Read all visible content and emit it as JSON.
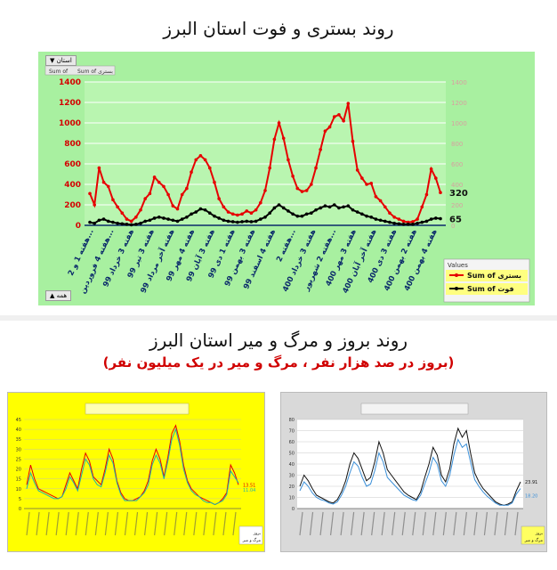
{
  "title_top": "روند بستری و فوت استان البرز",
  "title_bottom": "روند بروز و مرگ و میر استان البرز",
  "subtitle_bottom": "(بروز در صد هزار نفر ، مرگ و میر در یک میلیون نفر)",
  "filter_label": "استان",
  "bottom_filter_label": "همه",
  "colors": {
    "hosp": "#e60000",
    "death": "#000000",
    "panel_bg": "#a8f0a0",
    "yellow": "#ffff00",
    "gray": "#cccccc",
    "blue": "#3a8fd8",
    "teal": "#20b2aa"
  },
  "chart_data": [
    {
      "type": "line",
      "ylim": [
        0,
        1400
      ],
      "yticks": [
        0,
        200,
        400,
        600,
        800,
        1000,
        1200,
        1400
      ],
      "y2ticks": [
        0,
        200,
        400,
        600,
        800,
        1000,
        1200,
        1400
      ],
      "header_labels": [
        "Sum of",
        "Sum of بستری"
      ],
      "legend_title": "Values",
      "x_labels": [
        "هفته 1 و 2...",
        "هفته 4 فروردین...",
        "هفته 3 خرداد 99",
        "هفته 3 تیر 99",
        "هفته آخر مرداد 99",
        "هفته 4 مهر 99",
        "هفته 3 آبان 99",
        "هفته 1 دی 99",
        "هفته 3 بهمن 99",
        "هفته 4 اسفند 99",
        "هفته 2...",
        "هفته 3 خرداد 400",
        "هفته 2 شهریور...",
        "هفته 3 مهر 400",
        "هفته آخر آبان 400",
        "هفته 3 دی 400",
        "هفته 2 بهمن 400",
        "هفته 4 بهمن 400"
      ],
      "series": [
        {
          "name": "Sum of بستری",
          "end_label": "320",
          "values": [
            310,
            200,
            560,
            420,
            380,
            250,
            180,
            120,
            60,
            40,
            80,
            150,
            260,
            310,
            470,
            420,
            380,
            300,
            190,
            160,
            300,
            360,
            520,
            640,
            680,
            640,
            560,
            420,
            260,
            180,
            130,
            110,
            100,
            110,
            140,
            120,
            150,
            220,
            340,
            560,
            840,
            1000,
            850,
            640,
            480,
            360,
            330,
            340,
            400,
            560,
            740,
            920,
            960,
            1060,
            1080,
            1020,
            1190,
            820,
            540,
            460,
            400,
            410,
            280,
            240,
            180,
            120,
            80,
            60,
            40,
            30,
            35,
            60,
            180,
            300,
            550,
            460,
            320
          ]
        },
        {
          "name": "Sum of فوت",
          "end_label": "65",
          "values": [
            30,
            20,
            50,
            60,
            40,
            30,
            20,
            15,
            10,
            5,
            10,
            20,
            40,
            50,
            70,
            80,
            70,
            60,
            50,
            40,
            60,
            80,
            110,
            130,
            160,
            150,
            120,
            90,
            70,
            50,
            40,
            35,
            30,
            35,
            40,
            35,
            40,
            60,
            80,
            120,
            170,
            200,
            170,
            140,
            110,
            90,
            90,
            110,
            120,
            150,
            170,
            190,
            180,
            200,
            170,
            180,
            190,
            150,
            130,
            110,
            90,
            80,
            60,
            50,
            40,
            30,
            20,
            15,
            10,
            10,
            10,
            20,
            30,
            40,
            60,
            70,
            65
          ]
        }
      ]
    },
    {
      "type": "line",
      "ylim": [
        0,
        45
      ],
      "yticks": [
        0,
        5,
        10,
        15,
        20,
        25,
        30,
        35,
        40,
        45
      ],
      "end_labels": [
        "13.51",
        "11.04"
      ],
      "series": [
        {
          "values": [
            12,
            22,
            15,
            10,
            9,
            8,
            7,
            6,
            5,
            6,
            12,
            18,
            14,
            10,
            20,
            28,
            24,
            16,
            14,
            12,
            20,
            30,
            25,
            14,
            8,
            5,
            4,
            4,
            5,
            6,
            9,
            14,
            24,
            30,
            25,
            16,
            26,
            38,
            42,
            34,
            22,
            14,
            10,
            8,
            6,
            5,
            4,
            3,
            2,
            3,
            5,
            8,
            22,
            18,
            12
          ]
        },
        {
          "values": [
            10,
            18,
            13,
            9,
            8,
            7,
            6,
            5,
            5,
            6,
            10,
            16,
            13,
            9,
            17,
            25,
            22,
            15,
            12,
            11,
            18,
            27,
            23,
            13,
            7,
            4,
            4,
            4,
            4,
            6,
            8,
            12,
            22,
            27,
            23,
            15,
            24,
            35,
            40,
            32,
            20,
            13,
            9,
            7,
            6,
            4,
            3,
            3,
            2,
            3,
            4,
            7,
            19,
            16,
            13
          ]
        }
      ],
      "legend": [
        "بروز",
        "مرگ و میر"
      ]
    },
    {
      "type": "line",
      "ylim": [
        0,
        80
      ],
      "yticks": [
        0,
        10,
        20,
        30,
        40,
        50,
        60,
        70,
        80
      ],
      "end_labels": [
        "23.91",
        "18.20"
      ],
      "series": [
        {
          "values": [
            20,
            30,
            25,
            18,
            12,
            10,
            8,
            6,
            5,
            8,
            15,
            25,
            40,
            50,
            45,
            35,
            25,
            28,
            42,
            60,
            50,
            35,
            30,
            25,
            20,
            15,
            12,
            10,
            8,
            15,
            28,
            40,
            55,
            48,
            30,
            24,
            36,
            58,
            72,
            64,
            70,
            50,
            32,
            24,
            18,
            14,
            10,
            6,
            4,
            3,
            4,
            6,
            16,
            24
          ]
        },
        {
          "values": [
            16,
            24,
            20,
            14,
            10,
            8,
            7,
            5,
            4,
            6,
            12,
            20,
            32,
            42,
            38,
            28,
            20,
            22,
            34,
            50,
            42,
            28,
            24,
            20,
            16,
            12,
            10,
            8,
            7,
            12,
            22,
            32,
            46,
            40,
            25,
            20,
            30,
            48,
            62,
            55,
            58,
            42,
            26,
            20,
            15,
            11,
            8,
            5,
            3,
            3,
            3,
            5,
            13,
            18
          ]
        }
      ],
      "legend": [
        "بروز",
        "مرگ و میر"
      ]
    }
  ]
}
